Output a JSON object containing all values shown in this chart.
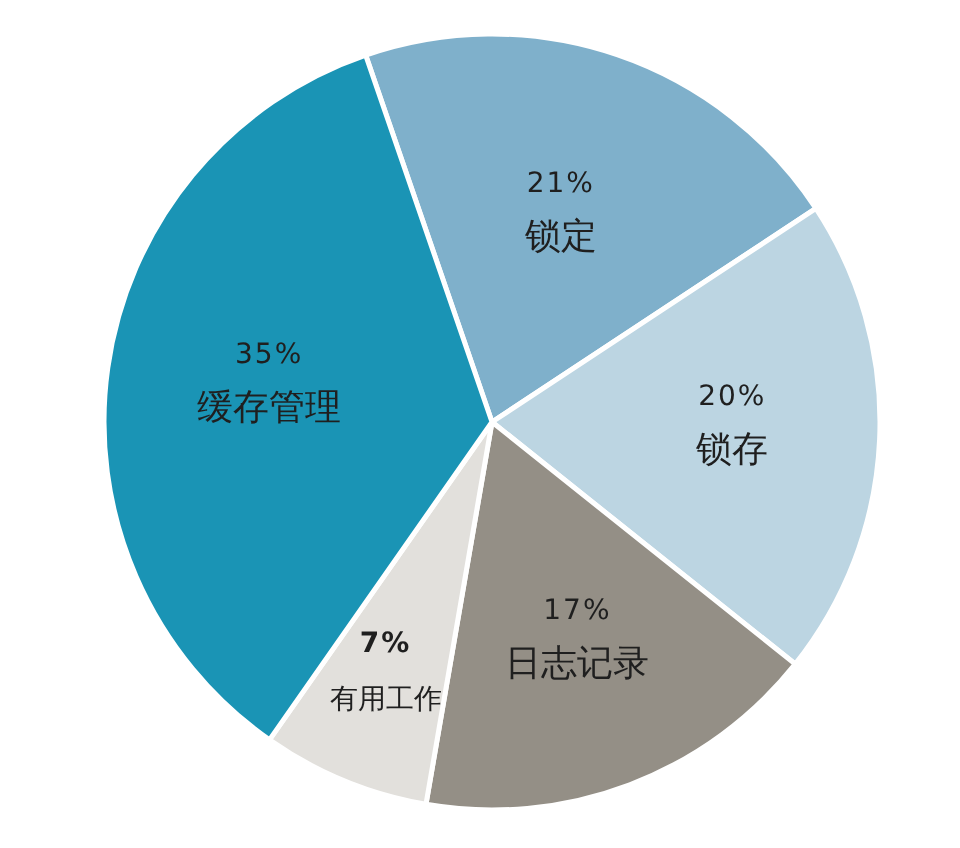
{
  "chart_data": {
    "type": "pie",
    "categories": [
      "锁定",
      "锁存",
      "日志记录",
      "有用工作",
      "缓存管理"
    ],
    "values": [
      21,
      20,
      17,
      7,
      35
    ],
    "colors": [
      "#7fb0cb",
      "#bcd5e2",
      "#948f86",
      "#e2e0dc",
      "#1a94b5"
    ],
    "value_labels": [
      "21%",
      "20%",
      "17%",
      "7%",
      "35%"
    ]
  }
}
